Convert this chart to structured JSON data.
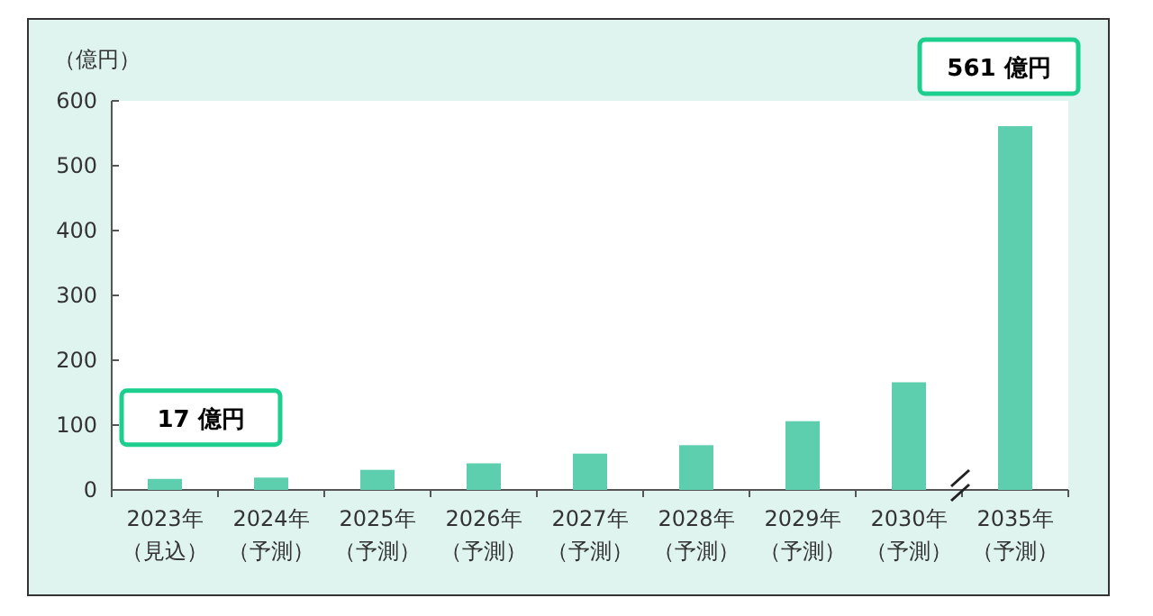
{
  "chart_data": {
    "type": "bar",
    "ylabel": "（億円）",
    "categories": [
      "2023年（見込）",
      "2024年（予測）",
      "2025年（予測）",
      "2026年（予測）",
      "2027年（予測）",
      "2028年（予測）",
      "2029年（予測）",
      "2030年（予測）",
      "2035年（予測）"
    ],
    "values": [
      17,
      19,
      31,
      41,
      56,
      69,
      106,
      166,
      561
    ],
    "color": "#5ecfae",
    "ylim": [
      0,
      600
    ],
    "yticks": [
      0,
      100,
      200,
      300,
      400,
      500,
      600
    ],
    "annotations": [
      {
        "text": "17 億円",
        "x": "2023年（見込）",
        "y": 17
      },
      {
        "text": "561 億円",
        "x": "2035年（予測）",
        "y": 561
      }
    ]
  }
}
